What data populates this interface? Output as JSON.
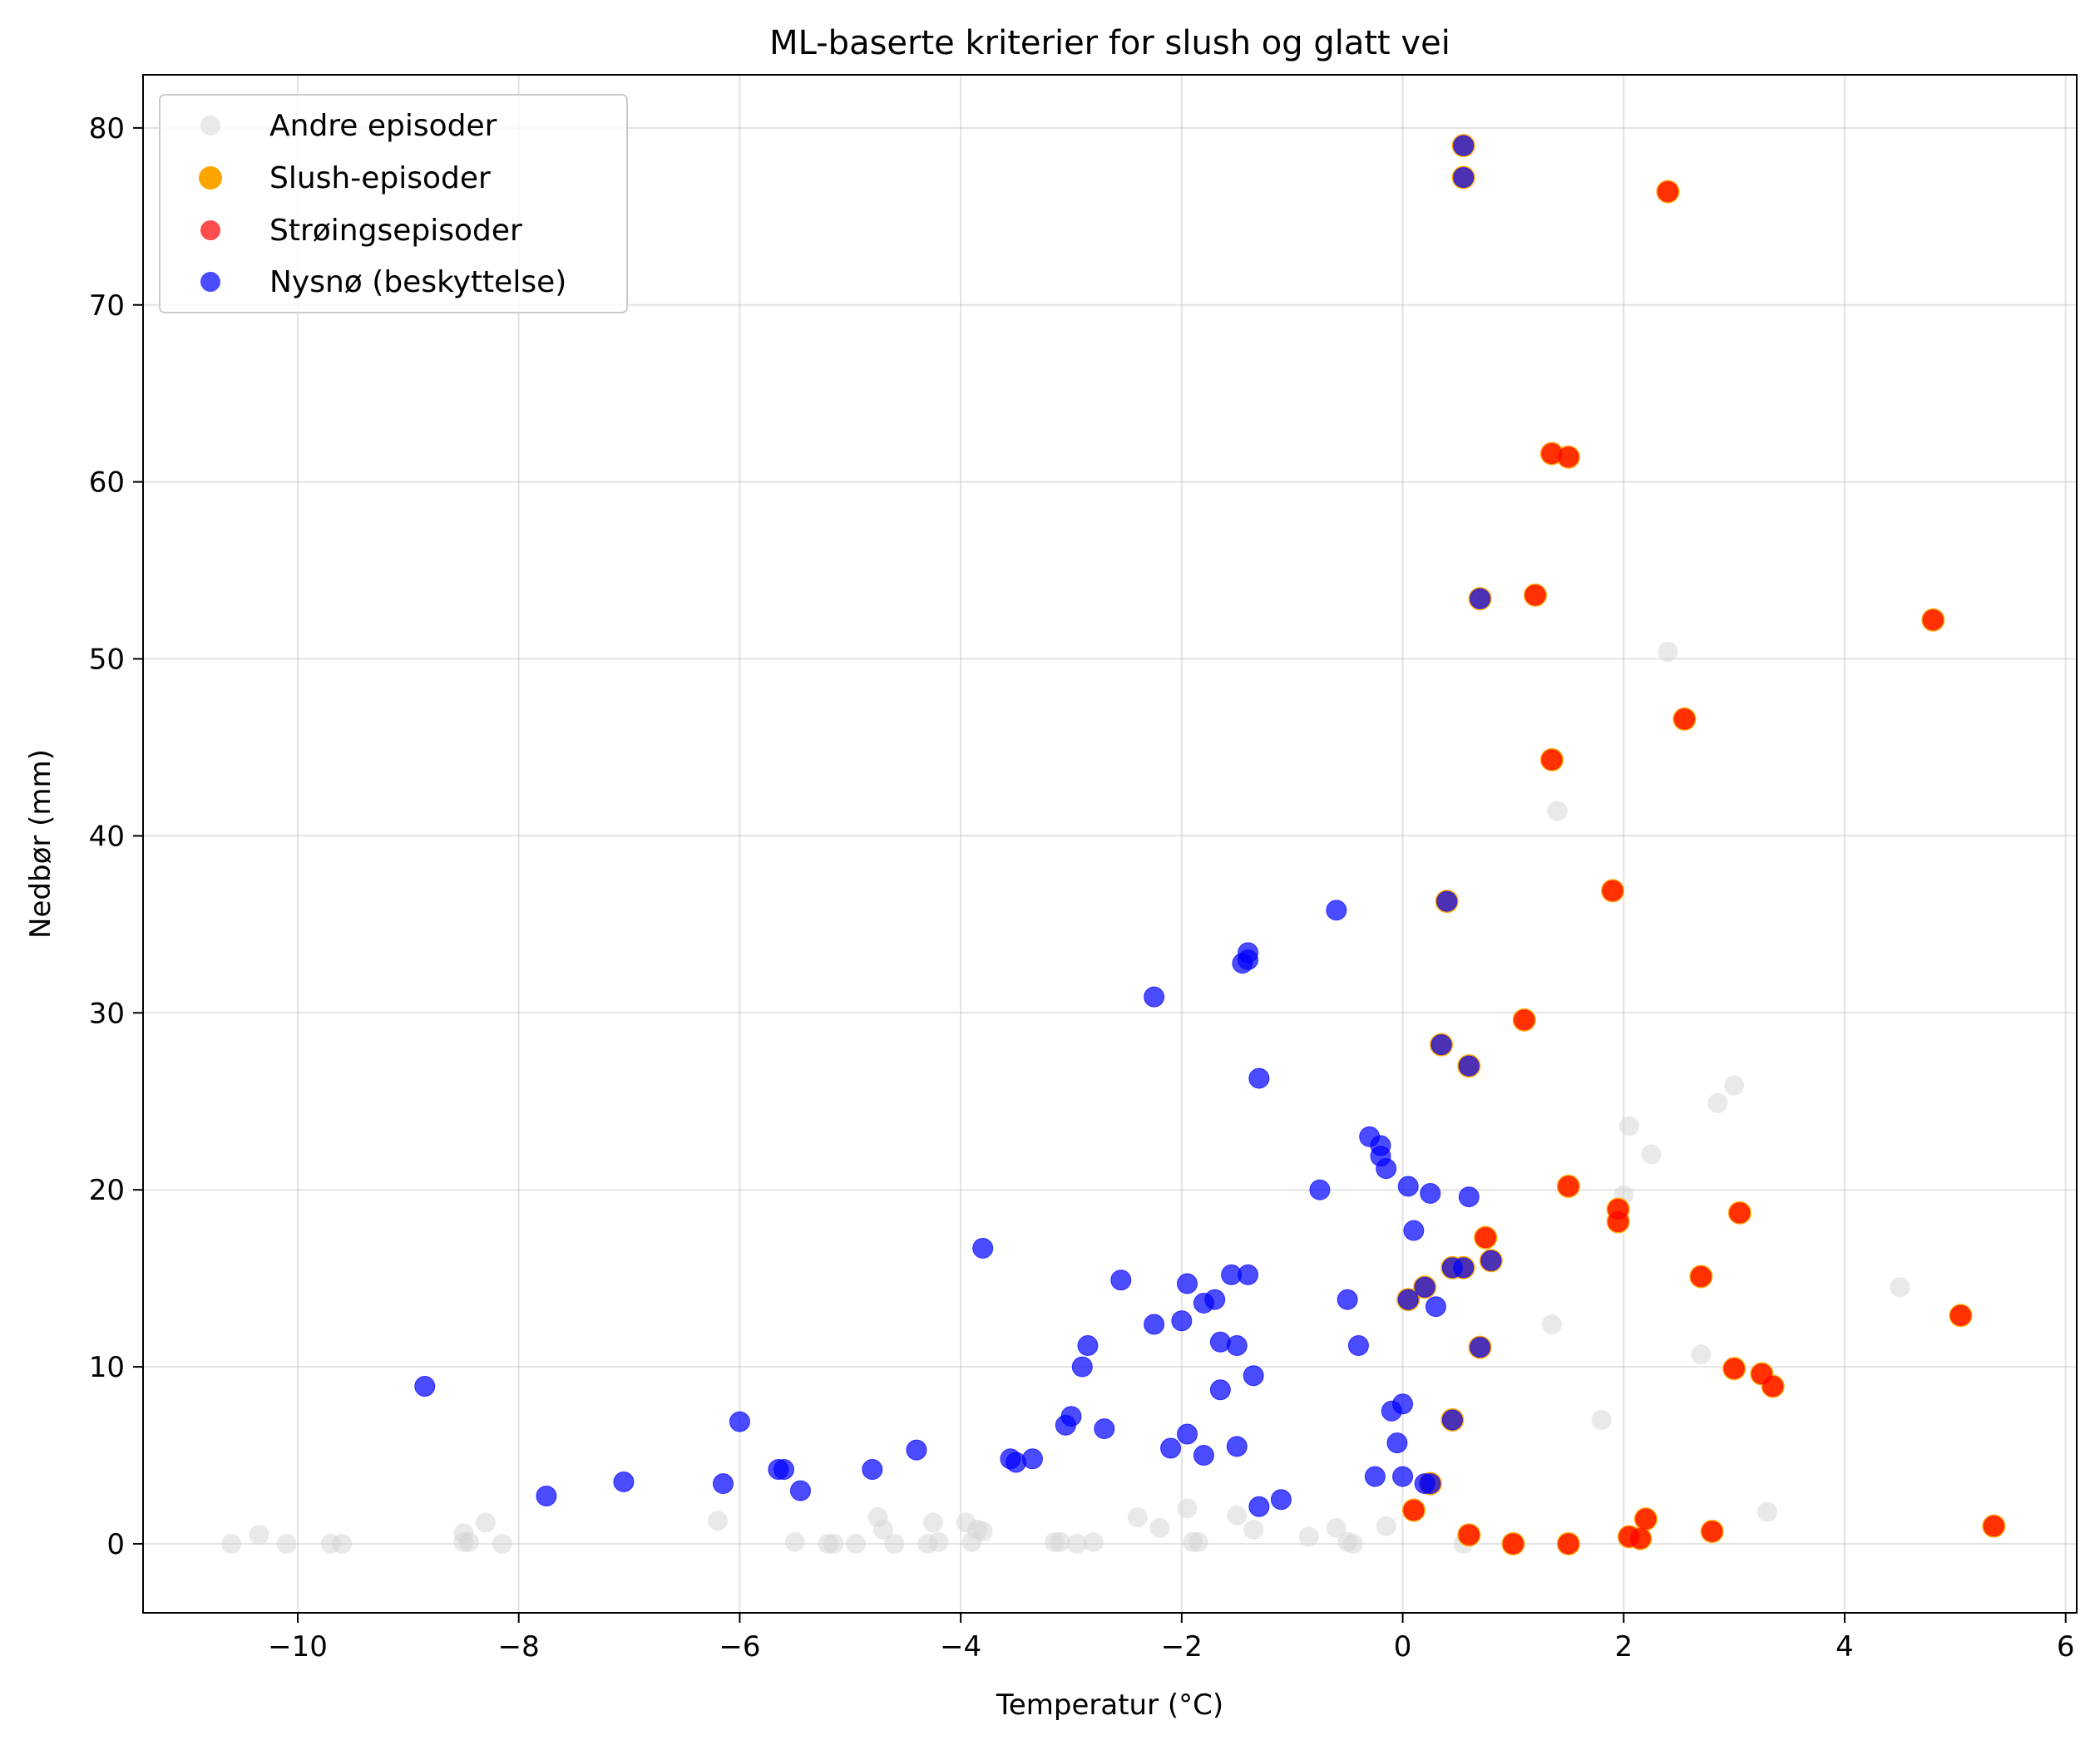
{
  "chart_data": {
    "type": "scatter",
    "title": "ML-baserte kriterier for slush og glatt vei",
    "xlabel": "Temperatur (°C)",
    "ylabel": "Nedbør (mm)",
    "xlim": [
      -11.4,
      6.1
    ],
    "ylim": [
      -3.9,
      83.0
    ],
    "xticks": [
      -10,
      -8,
      -6,
      -4,
      -2,
      0,
      2,
      4,
      6
    ],
    "xtick_labels": [
      "−10",
      "−8",
      "−6",
      "−4",
      "−2",
      "0",
      "2",
      "4",
      "6"
    ],
    "yticks": [
      0,
      10,
      20,
      30,
      40,
      50,
      60,
      70,
      80
    ],
    "ytick_labels": [
      "0",
      "10",
      "20",
      "30",
      "40",
      "50",
      "60",
      "70",
      "80"
    ],
    "grid": true,
    "legend_position": "upper-left",
    "series": [
      {
        "name": "Andre episoder",
        "color": "#d3d3d3",
        "alpha": 0.5,
        "points": [
          [
            -10.6,
            0.0
          ],
          [
            -10.35,
            0.5
          ],
          [
            -10.1,
            0.0
          ],
          [
            -9.7,
            0.0
          ],
          [
            -9.6,
            0.0
          ],
          [
            -8.5,
            0.6
          ],
          [
            -8.5,
            0.1
          ],
          [
            -8.45,
            0.1
          ],
          [
            -8.3,
            1.2
          ],
          [
            -8.15,
            0.0
          ],
          [
            -6.2,
            1.3
          ],
          [
            -5.5,
            0.1
          ],
          [
            -5.2,
            0.0
          ],
          [
            -5.15,
            0.0
          ],
          [
            -4.95,
            0.0
          ],
          [
            -4.75,
            1.5
          ],
          [
            -4.7,
            0.8
          ],
          [
            -4.6,
            0.0
          ],
          [
            -4.3,
            0.0
          ],
          [
            -4.25,
            1.2
          ],
          [
            -4.2,
            0.1
          ],
          [
            -3.95,
            1.2
          ],
          [
            -3.9,
            0.1
          ],
          [
            -3.85,
            0.8
          ],
          [
            -3.8,
            0.7
          ],
          [
            -3.15,
            0.1
          ],
          [
            -3.1,
            0.1
          ],
          [
            -2.95,
            0.0
          ],
          [
            -2.8,
            0.1
          ],
          [
            -2.4,
            1.5
          ],
          [
            -2.2,
            0.9
          ],
          [
            -1.95,
            2.0
          ],
          [
            -1.9,
            0.1
          ],
          [
            -1.85,
            0.1
          ],
          [
            -1.5,
            1.6
          ],
          [
            -1.35,
            0.8
          ],
          [
            -0.85,
            0.4
          ],
          [
            -0.6,
            0.9
          ],
          [
            -0.5,
            0.1
          ],
          [
            -0.45,
            0.0
          ],
          [
            -0.15,
            1.0
          ],
          [
            0.55,
            0.0
          ],
          [
            1.35,
            12.4
          ],
          [
            1.4,
            41.4
          ],
          [
            1.8,
            7.0
          ],
          [
            2.0,
            19.7
          ],
          [
            2.05,
            23.6
          ],
          [
            2.25,
            22.0
          ],
          [
            2.4,
            50.4
          ],
          [
            2.7,
            10.7
          ],
          [
            2.85,
            24.9
          ],
          [
            3.0,
            25.9
          ],
          [
            3.3,
            1.8
          ],
          [
            4.5,
            14.5
          ]
        ]
      },
      {
        "name": "Slush-episoder",
        "color": "#ffa500",
        "alpha": 1.0,
        "points": [
          [
            0.55,
            79.0
          ],
          [
            0.55,
            77.2
          ],
          [
            2.4,
            76.4
          ],
          [
            1.35,
            61.6
          ],
          [
            1.5,
            61.4
          ],
          [
            1.2,
            53.6
          ],
          [
            0.7,
            53.4
          ],
          [
            4.8,
            52.2
          ],
          [
            2.55,
            46.6
          ],
          [
            1.35,
            44.3
          ],
          [
            1.9,
            36.9
          ],
          [
            0.4,
            36.3
          ],
          [
            0.35,
            28.2
          ],
          [
            1.1,
            29.6
          ],
          [
            0.6,
            27.0
          ],
          [
            1.5,
            20.2
          ],
          [
            1.95,
            18.9
          ],
          [
            1.95,
            18.2
          ],
          [
            3.05,
            18.7
          ],
          [
            0.75,
            17.3
          ],
          [
            0.8,
            16.0
          ],
          [
            0.45,
            15.6
          ],
          [
            0.55,
            15.6
          ],
          [
            2.7,
            15.1
          ],
          [
            0.2,
            14.5
          ],
          [
            0.05,
            13.8
          ],
          [
            5.05,
            12.9
          ],
          [
            0.7,
            11.1
          ],
          [
            3.0,
            9.9
          ],
          [
            3.25,
            9.6
          ],
          [
            3.35,
            8.9
          ],
          [
            0.45,
            7.0
          ],
          [
            0.25,
            3.4
          ],
          [
            0.1,
            1.9
          ],
          [
            2.2,
            1.4
          ],
          [
            5.35,
            1.0
          ],
          [
            2.8,
            0.7
          ],
          [
            0.6,
            0.5
          ],
          [
            2.05,
            0.4
          ],
          [
            2.15,
            0.3
          ],
          [
            1.0,
            0.0
          ],
          [
            1.5,
            0.0
          ]
        ]
      },
      {
        "name": "Strøingsepisoder",
        "color": "#ff0000",
        "alpha": 0.7,
        "points": [
          [
            2.4,
            76.4
          ],
          [
            1.35,
            61.6
          ],
          [
            1.5,
            61.4
          ],
          [
            1.2,
            53.6
          ],
          [
            4.8,
            52.2
          ],
          [
            2.55,
            46.6
          ],
          [
            1.35,
            44.3
          ],
          [
            1.9,
            36.9
          ],
          [
            1.1,
            29.6
          ],
          [
            1.5,
            20.2
          ],
          [
            1.95,
            18.9
          ],
          [
            1.95,
            18.2
          ],
          [
            3.05,
            18.7
          ],
          [
            0.75,
            17.3
          ],
          [
            2.7,
            15.1
          ],
          [
            5.05,
            12.9
          ],
          [
            3.0,
            9.9
          ],
          [
            3.25,
            9.6
          ],
          [
            3.35,
            8.9
          ],
          [
            0.1,
            1.9
          ],
          [
            2.2,
            1.4
          ],
          [
            5.35,
            1.0
          ],
          [
            2.8,
            0.7
          ],
          [
            0.6,
            0.5
          ],
          [
            2.05,
            0.4
          ],
          [
            2.15,
            0.3
          ],
          [
            1.0,
            0.0
          ],
          [
            1.5,
            0.0
          ]
        ]
      },
      {
        "name": "Nysnø (beskyttelse)",
        "color": "#0000ff",
        "alpha": 0.7,
        "points": [
          [
            0.55,
            79.0
          ],
          [
            0.55,
            77.2
          ],
          [
            0.7,
            53.4
          ],
          [
            0.4,
            36.3
          ],
          [
            -0.6,
            35.8
          ],
          [
            -1.4,
            33.4
          ],
          [
            -1.45,
            32.8
          ],
          [
            -1.4,
            33.0
          ],
          [
            -2.25,
            30.9
          ],
          [
            0.35,
            28.2
          ],
          [
            0.6,
            27.0
          ],
          [
            -1.3,
            26.3
          ],
          [
            -0.3,
            23.0
          ],
          [
            -0.2,
            22.5
          ],
          [
            -0.2,
            21.9
          ],
          [
            -0.15,
            21.2
          ],
          [
            -0.75,
            20.0
          ],
          [
            0.05,
            20.2
          ],
          [
            0.25,
            19.8
          ],
          [
            0.6,
            19.6
          ],
          [
            0.1,
            17.7
          ],
          [
            -3.8,
            16.7
          ],
          [
            0.8,
            16.0
          ],
          [
            0.45,
            15.6
          ],
          [
            0.55,
            15.6
          ],
          [
            -1.55,
            15.2
          ],
          [
            -1.4,
            15.2
          ],
          [
            -2.55,
            14.9
          ],
          [
            -1.95,
            14.7
          ],
          [
            0.2,
            14.5
          ],
          [
            -1.7,
            13.8
          ],
          [
            -1.8,
            13.6
          ],
          [
            -0.5,
            13.8
          ],
          [
            0.05,
            13.8
          ],
          [
            0.3,
            13.4
          ],
          [
            -2.25,
            12.4
          ],
          [
            -2.0,
            12.6
          ],
          [
            -1.65,
            11.4
          ],
          [
            -1.5,
            11.2
          ],
          [
            -2.85,
            11.2
          ],
          [
            -0.4,
            11.2
          ],
          [
            0.7,
            11.1
          ],
          [
            -2.9,
            10.0
          ],
          [
            -1.35,
            9.5
          ],
          [
            -8.85,
            8.9
          ],
          [
            -1.65,
            8.7
          ],
          [
            0.0,
            7.9
          ],
          [
            -0.1,
            7.5
          ],
          [
            -3.0,
            7.2
          ],
          [
            -6.0,
            6.9
          ],
          [
            -3.05,
            6.7
          ],
          [
            -2.7,
            6.5
          ],
          [
            -1.95,
            6.2
          ],
          [
            0.45,
            7.0
          ],
          [
            -0.05,
            5.7
          ],
          [
            -1.5,
            5.5
          ],
          [
            -2.1,
            5.4
          ],
          [
            -4.4,
            5.3
          ],
          [
            -1.8,
            5.0
          ],
          [
            -3.55,
            4.8
          ],
          [
            -3.35,
            4.8
          ],
          [
            -3.5,
            4.6
          ],
          [
            -4.8,
            4.2
          ],
          [
            -5.65,
            4.2
          ],
          [
            -5.6,
            4.2
          ],
          [
            -0.25,
            3.8
          ],
          [
            0.0,
            3.8
          ],
          [
            -6.15,
            3.4
          ],
          [
            -7.05,
            3.5
          ],
          [
            0.2,
            3.4
          ],
          [
            0.25,
            3.4
          ],
          [
            -5.45,
            3.0
          ],
          [
            -7.75,
            2.7
          ],
          [
            -1.1,
            2.5
          ],
          [
            -1.3,
            2.1
          ]
        ]
      }
    ]
  }
}
